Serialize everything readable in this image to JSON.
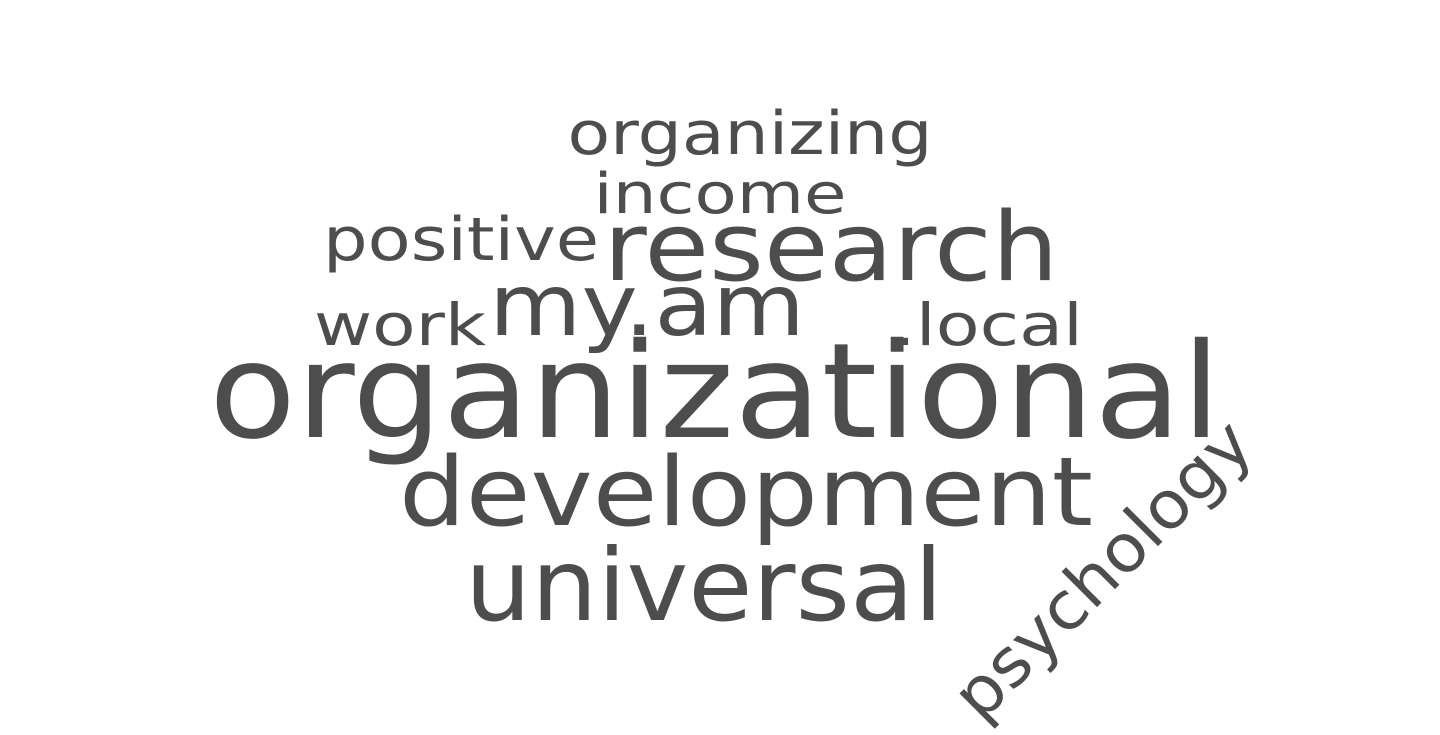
{
  "word_cloud": {
    "color": "#4d4d4d",
    "background": "#ffffff",
    "words": [
      {
        "text": "organizational",
        "rotated": false
      },
      {
        "text": "development",
        "rotated": false
      },
      {
        "text": "universal",
        "rotated": false
      },
      {
        "text": "research",
        "rotated": false
      },
      {
        "text": "my.am",
        "rotated": false
      },
      {
        "text": "psychology",
        "rotated": true
      },
      {
        "text": "organizing",
        "rotated": false
      },
      {
        "text": "income",
        "rotated": false
      },
      {
        "text": "positive",
        "rotated": false
      },
      {
        "text": "work",
        "rotated": false
      },
      {
        "text": ".local",
        "rotated": false
      }
    ]
  }
}
